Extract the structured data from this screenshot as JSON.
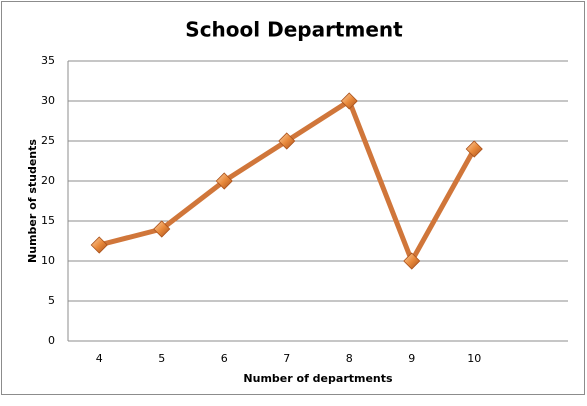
{
  "chart_data": {
    "type": "line",
    "title": "School Department",
    "x_label": "Number of departments",
    "y_label": "Number of students",
    "categories": [
      "4",
      "5",
      "6",
      "7",
      "8",
      "9",
      "10",
      null
    ],
    "series": [
      {
        "name": "Number of students",
        "color": "#d0763a",
        "values": [
          12,
          14,
          20,
          25,
          30,
          10,
          24,
          null
        ]
      }
    ],
    "ylim": [
      0,
      35
    ],
    "yticks": [
      0,
      5,
      10,
      15,
      20,
      25,
      30,
      35
    ],
    "grid": true
  }
}
